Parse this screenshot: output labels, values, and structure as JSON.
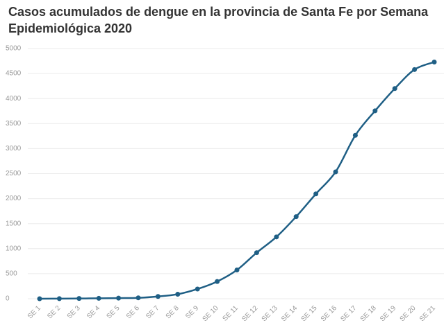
{
  "chart_data": {
    "type": "line",
    "title": "Casos acumulados de dengue en la provincia de Santa Fe por Semana Epidemiológica 2020",
    "categories": [
      "SE 1",
      "SE 2",
      "SE 3",
      "SE 4",
      "SE 5",
      "SE 6",
      "SE 7",
      "SE 8",
      "SE 9",
      "SE 10",
      "SE 11",
      "SE 12",
      "SE 13",
      "SE 14",
      "SE 15",
      "SE 16",
      "SE 17",
      "SE 18",
      "SE 19",
      "SE 20",
      "SE 21"
    ],
    "series": [
      {
        "name": "Casos acumulados",
        "color": "#1f5f85",
        "values": [
          0,
          2,
          5,
          8,
          12,
          18,
          45,
          90,
          194,
          345,
          575,
          920,
          1235,
          1640,
          2095,
          2535,
          3265,
          3755,
          4200,
          4580,
          4730
        ]
      }
    ],
    "ylim": [
      0,
      5000
    ],
    "yticks": [
      0,
      500,
      1000,
      1500,
      2000,
      2500,
      3000,
      3500,
      4000,
      4500,
      5000
    ],
    "grid": true
  }
}
